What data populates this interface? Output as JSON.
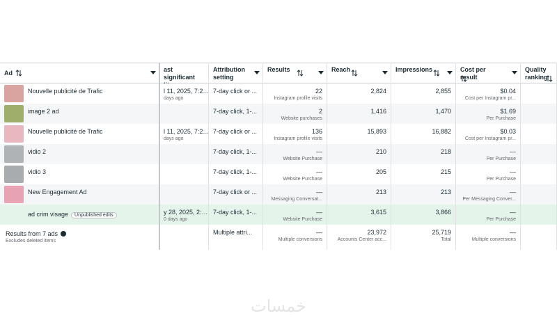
{
  "table": {
    "columns": [
      "Ad",
      "ast significant lit",
      "Attribution setting",
      "Results",
      "Reach",
      "Impressions",
      "Cost per result",
      "Quality ranking"
    ],
    "rows": [
      {
        "name": "Nouvelle publicité de Trafic",
        "edit_date": "l 11, 2025, 7:2…",
        "edit_ago": "days ago",
        "attribution": "7-day click or ...",
        "results": "22",
        "results_label": "Instagram profile visits",
        "reach": "2,824",
        "impressions": "2,855",
        "cost": "$0.04",
        "cost_label": "Cost per Instagram pr..."
      },
      {
        "name": "image 2 ad",
        "attribution": "7-day click, 1-...",
        "results": "2",
        "results_label": "Website purchases",
        "reach": "1,416",
        "impressions": "1,470",
        "cost": "$1.69",
        "cost_label": "Per Purchase"
      },
      {
        "name": "Nouvelle publicité de Trafic",
        "edit_date": "l 11, 2025, 7:2…",
        "edit_ago": "days ago",
        "attribution": "7-day click or ...",
        "results": "136",
        "results_label": "Instagram profile visits",
        "reach": "15,893",
        "impressions": "16,882",
        "cost": "$0.03",
        "cost_label": "Cost per Instagram pr..."
      },
      {
        "name": "vidio 2",
        "attribution": "7-day click, 1-...",
        "results": "—",
        "results_label": "Website Purchase",
        "reach": "210",
        "impressions": "218",
        "cost": "—",
        "cost_label": "Per Purchase"
      },
      {
        "name": "vidio 3",
        "attribution": "7-day click, 1-...",
        "results": "—",
        "results_label": "Website Purchase",
        "reach": "205",
        "impressions": "215",
        "cost": "—",
        "cost_label": "Per Purchase"
      },
      {
        "name": "New Engagement Ad",
        "attribution": "7-day click or ...",
        "results": "—",
        "results_label": "Messaging Conversat...",
        "reach": "213",
        "impressions": "213",
        "cost": "—",
        "cost_label": "Per Messaging Conver..."
      },
      {
        "name": "ad crim visage",
        "badge": "Unpublished edits",
        "edit_date": "y 28, 2025, 2:…",
        "edit_ago": "0 days ago",
        "attribution": "7-day click, 1-...",
        "results": "—",
        "results_label": "Website Purchase",
        "reach": "3,615",
        "impressions": "3,866",
        "cost": "—",
        "cost_label": "Per Purchase"
      }
    ],
    "total": {
      "label": "Results from 7 ads",
      "sublabel": "Excludes deleted items",
      "attribution": "Multiple attri...",
      "results": "—",
      "results_label": "Multiple conversions",
      "reach": "23,972",
      "reach_label": "Accounts Center acc...",
      "impressions": "25,719",
      "impressions_label": "Total",
      "cost": "—",
      "cost_label": "Multiple conversions"
    }
  },
  "watermark": "خمسات"
}
